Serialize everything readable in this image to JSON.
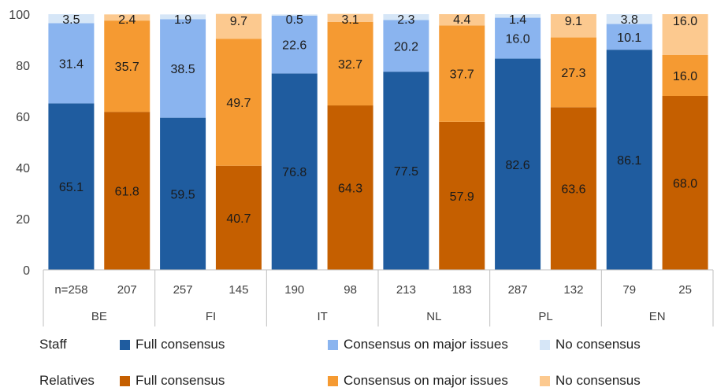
{
  "chart_data": {
    "type": "bar",
    "stacked": true,
    "ylim": [
      0,
      100
    ],
    "yticks": [
      0,
      20,
      40,
      60,
      80,
      100
    ],
    "grid": false,
    "legend_placement": "bottom",
    "groups": [
      "BE",
      "FI",
      "IT",
      "NL",
      "PL",
      "EN"
    ],
    "bars": [
      {
        "group": "BE",
        "respondent": "Staff",
        "n_label": "n=258",
        "values": [
          65.1,
          31.4,
          3.5
        ]
      },
      {
        "group": "BE",
        "respondent": "Relatives",
        "n_label": "207",
        "values": [
          61.8,
          35.7,
          2.4
        ]
      },
      {
        "group": "FI",
        "respondent": "Staff",
        "n_label": "257",
        "values": [
          59.5,
          38.5,
          1.9
        ]
      },
      {
        "group": "FI",
        "respondent": "Relatives",
        "n_label": "145",
        "values": [
          40.7,
          49.7,
          9.7
        ]
      },
      {
        "group": "IT",
        "respondent": "Staff",
        "n_label": "190",
        "values": [
          76.8,
          22.6,
          0.5
        ]
      },
      {
        "group": "IT",
        "respondent": "Relatives",
        "n_label": "98",
        "values": [
          64.3,
          32.7,
          3.1
        ]
      },
      {
        "group": "NL",
        "respondent": "Staff",
        "n_label": "213",
        "values": [
          77.5,
          20.2,
          2.3
        ]
      },
      {
        "group": "NL",
        "respondent": "Relatives",
        "n_label": "183",
        "values": [
          57.9,
          37.7,
          4.4
        ]
      },
      {
        "group": "PL",
        "respondent": "Staff",
        "n_label": "287",
        "values": [
          82.6,
          16.0,
          1.4
        ]
      },
      {
        "group": "PL",
        "respondent": "Relatives",
        "n_label": "132",
        "values": [
          63.6,
          27.3,
          9.1
        ]
      },
      {
        "group": "EN",
        "respondent": "Staff",
        "n_label": "79",
        "values": [
          86.1,
          10.1,
          3.8
        ]
      },
      {
        "group": "EN",
        "respondent": "Relatives",
        "n_label": "25",
        "values": [
          68.0,
          16.0,
          16.0
        ]
      }
    ],
    "value_labels": [
      [
        "65.1",
        "31.4",
        "3.5"
      ],
      [
        "61.8",
        "35.7",
        "2.4"
      ],
      [
        "59.5",
        "38.5",
        "1.9"
      ],
      [
        "40.7",
        "49.7",
        "9.7"
      ],
      [
        "76.8",
        "22.6",
        "0.5"
      ],
      [
        "64.3",
        "32.7",
        "3.1"
      ],
      [
        "77.5",
        "20.2",
        "2.3"
      ],
      [
        "57.9",
        "37.7",
        "4.4"
      ],
      [
        "82.6",
        "16.0",
        "1.4"
      ],
      [
        "63.6",
        "27.3",
        "9.1"
      ],
      [
        "86.1",
        "10.1",
        "3.8"
      ],
      [
        "68.0",
        "16.0",
        "16.0"
      ]
    ],
    "colors": {
      "Staff": [
        "#1f5c9f",
        "#8ab4ef",
        "#d6e6f7"
      ],
      "Relatives": [
        "#c55f00",
        "#f59a32",
        "#fcc98f"
      ]
    },
    "legend": {
      "rows": [
        {
          "label": "Staff",
          "entries": [
            "Full consensus",
            "Consensus on major issues",
            "No consensus"
          ]
        },
        {
          "label": "Relatives",
          "entries": [
            "Full consensus",
            "Consensus on major issues",
            "No consensus"
          ]
        }
      ]
    }
  }
}
